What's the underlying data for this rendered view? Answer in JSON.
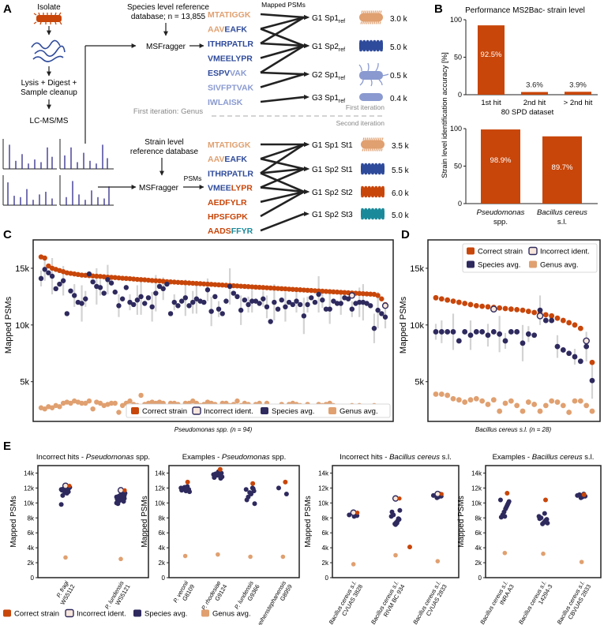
{
  "colors": {
    "correct": "#C8460A",
    "species": "#2E2A5E",
    "genus": "#E0A070",
    "peptide_light": "#E0A070",
    "peptide_mid": "#2E4A9A",
    "peptide_pale": "#8A9AD0",
    "peptide_red": "#C8460A",
    "peptide_teal": "#1A8A9A",
    "whisker": "#D3D3D3",
    "incorrect_fill": "#F7E6DC"
  },
  "panel_a": {
    "letter": "A",
    "isolate": "Isolate",
    "lysis": "Lysis + Digest +",
    "lysis2": "Sample cleanup",
    "lcms": "LC-MS/MS",
    "species_db": "Species level reference",
    "species_db2": "database; n = 13,855",
    "msfragger": "MSFragger",
    "mapped_psms": "Mapped PSMs",
    "first_iter_genus": "First iteration: Genus",
    "first_iter": "First iteration",
    "second_iter": "Second iteration",
    "strain_db": "Strain level",
    "strain_db2": "reference database",
    "psms": "PSMs",
    "top_peptides": [
      {
        "a": "MTATIGGK",
        "b": ""
      },
      {
        "a": "AAV",
        "b": "EAFK"
      },
      {
        "a": "ITHRPATLR",
        "b": ""
      },
      {
        "a": "VMEELYPR",
        "b": ""
      },
      {
        "a": "ESPV",
        "b": "VAK"
      },
      {
        "a": "SIVFPTVAK",
        "b": ""
      },
      {
        "a": "IWLAISK",
        "b": ""
      }
    ],
    "top_targets": [
      {
        "g": "G1 Sp1",
        "sub": "ref",
        "count": "3.0 k"
      },
      {
        "g": "G1 Sp2",
        "sub": "ref",
        "count": "5.0 k"
      },
      {
        "g": "G2 Sp1",
        "sub": "ref",
        "count": "0.5 k"
      },
      {
        "g": "G3 Sp1",
        "sub": "ref",
        "count": "0.4 k"
      }
    ],
    "bottom_peptides": [
      {
        "a": "MTATIGGK",
        "b": ""
      },
      {
        "a": "AAV",
        "b": "EAFK"
      },
      {
        "a": "ITHRPATLR",
        "b": ""
      },
      {
        "a": "VMEE",
        "b": "LYPR"
      },
      {
        "a": "AEDFYLR",
        "b": ""
      },
      {
        "a": "HPSFGPK",
        "b": ""
      },
      {
        "a": "AADS",
        "b": "FFYR"
      }
    ],
    "bottom_targets": [
      {
        "g": "G1 Sp1 St1",
        "count": "3.5 k"
      },
      {
        "g": "G1 Sp2 St1",
        "count": "5.5 k"
      },
      {
        "g": "G1 Sp2 St2",
        "count": "6.0 k"
      },
      {
        "g": "G1 Sp2 St3",
        "count": "5.0 k"
      }
    ]
  },
  "panel_b": {
    "letter": "B",
    "title": "Performance MS2Bac- strain level",
    "ylabel": "Strain level identification accuracy [%]",
    "top": {
      "categories": [
        "1st hit",
        "2nd hit",
        "> 2nd hit"
      ],
      "values": [
        92.5,
        3.6,
        3.9
      ],
      "labels": [
        "92.5%",
        "3.6%",
        "3.9%"
      ],
      "xlabel": "80 SPD dataset",
      "ylim": [
        0,
        100
      ],
      "yticks": [
        "0",
        "50",
        "100"
      ]
    },
    "bottom": {
      "categories": [
        "Pseudomonas",
        "Bacillus cereus"
      ],
      "sub": [
        "spp.",
        "s.l."
      ],
      "values": [
        98.9,
        89.7
      ],
      "labels": [
        "98.9%",
        "89.7%"
      ]
    }
  },
  "panel_c": {
    "letter": "C",
    "ylabel": "Mapped PSMs",
    "xlabel": "Pseudomonas spp. (n = 94)",
    "yticks": [
      "5k",
      "10k",
      "15k"
    ]
  },
  "panel_d": {
    "letter": "D",
    "ylabel": "Mapped PSMs",
    "xlabel": "Bacillus cereus s.l. (n = 28)",
    "yticks": [
      "5k",
      "10k",
      "15k"
    ]
  },
  "panel_e": {
    "letter": "E",
    "ylabel": "Mapped PSMs",
    "yticks": [
      "0",
      "2k",
      "4k",
      "6k",
      "8k",
      "10k",
      "12k",
      "14k"
    ],
    "subplots": [
      {
        "title_a": "Incorrect hits - ",
        "title_b": "Pseudomonas",
        "title_c": " spp.",
        "labels": [
          [
            "P. fragi",
            "WS5112"
          ],
          [
            "P. lundensis",
            "WS5121"
          ]
        ]
      },
      {
        "title_a": "Examples - ",
        "title_b": "Pseudomonas",
        "title_c": " spp.",
        "labels": [
          [
            "P. veronii",
            "G8109"
          ],
          [
            "P. rhodesiae",
            "G9124"
          ],
          [
            "P. lundensis",
            "G9366"
          ],
          [
            "P. weihenstephanensis",
            "G8959"
          ]
        ]
      },
      {
        "title_a": "Incorrect hits - ",
        "title_b": "Bacillus cereus",
        "title_c": " s.l.",
        "labels": [
          [
            "Bacillus cereus s.l.",
            "CVUAS 3828"
          ],
          [
            "Bacillus cereus s.l.",
            "RIVM BC 934"
          ],
          [
            "Bacillus cereus s.l.",
            "CVUAS 2833"
          ]
        ]
      },
      {
        "title_a": "Examples - ",
        "title_b": "Bacillus cereus",
        "title_c": " s.l.",
        "labels": [
          [
            "Bacillus cereus s.l.",
            "INRA A3"
          ],
          [
            "Bacillus cereus s.l.",
            "14294-3"
          ],
          [
            "Bacillus cereus s.l.",
            "CBVUAS 2833"
          ]
        ]
      }
    ]
  },
  "legend": {
    "correct": "Correct strain",
    "incorrect": "Incorrect ident.",
    "species": "Species avg.",
    "genus": "Genus avg."
  },
  "chart_data": [
    {
      "type": "bar",
      "title": "Performance MS2Bac- strain level",
      "categories": [
        "1st hit",
        "2nd hit",
        "> 2nd hit"
      ],
      "values": [
        92.5,
        3.6,
        3.9
      ],
      "xlabel": "80 SPD dataset",
      "ylabel": "Strain level identification accuracy [%]",
      "ylim": [
        0,
        100
      ]
    },
    {
      "type": "bar",
      "categories": [
        "Pseudomonas spp.",
        "Bacillus cereus s.l."
      ],
      "values": [
        98.9,
        89.7
      ],
      "ylim": [
        0,
        100
      ]
    },
    {
      "type": "scatter",
      "title": "Pseudomonas spp. (n = 94)",
      "ylabel": "Mapped PSMs",
      "ylim": [
        1500,
        17500
      ],
      "series": [
        {
          "name": "Correct strain",
          "values": [
            16000,
            15900,
            15200,
            15000,
            14900,
            14800,
            14700,
            14600,
            14550,
            14500,
            14450,
            14400,
            14380,
            14350,
            14320,
            14300,
            14280,
            14250,
            14220,
            14200,
            14180,
            14150,
            14120,
            14100,
            14080,
            14050,
            14020,
            14000,
            13980,
            13950,
            13920,
            13900,
            13880,
            13850,
            13820,
            13800,
            13780,
            13760,
            13740,
            13720,
            13700,
            13680,
            13660,
            13640,
            13620,
            13600,
            13580,
            13560,
            13540,
            13520,
            13500,
            13480,
            13460,
            13440,
            13420,
            13400,
            13380,
            13360,
            13340,
            13320,
            13300,
            13280,
            13260,
            13240,
            13220,
            13200,
            13180,
            13160,
            13140,
            13120,
            13100,
            13080,
            13060,
            13040,
            13020,
            13000,
            12980,
            12960,
            12940,
            12920,
            12900,
            12880,
            12860,
            12840,
            12820,
            12800,
            12780,
            12760,
            12740,
            12720,
            12700,
            12600,
            12300,
            11800
          ]
        },
        {
          "name": "Species avg.",
          "values": [
            14100,
            14900,
            14600,
            14300,
            13200,
            13600,
            13900,
            11000,
            13000,
            12600,
            12000,
            11900,
            12300,
            14500,
            13800,
            13400,
            13300,
            12800,
            14000,
            13700,
            12900,
            11700,
            12300,
            13300,
            12000,
            11800,
            12200,
            12500,
            11900,
            12400,
            11600,
            12800,
            13400,
            13200,
            13600,
            11000,
            12000,
            11700,
            12100,
            12400,
            11700,
            12000,
            12300,
            12100,
            12000,
            13100,
            11200,
            12500,
            11400,
            11000,
            12100,
            13400,
            12800,
            12500,
            11300,
            12200,
            11800,
            12100,
            12100,
            11900,
            12300,
            11600,
            10300,
            12000,
            11400,
            12200,
            11600,
            12000,
            11800,
            12100,
            11800,
            10800,
            11800,
            12400,
            12000,
            12700,
            12200,
            11400,
            11400,
            12100,
            11900,
            11900,
            12400,
            12300,
            11400,
            11900,
            12000,
            12000,
            11900,
            11700,
            9700,
            11300,
            11000,
            10700
          ]
        },
        {
          "name": "Genus avg.",
          "values": [
            2700,
            2600,
            2800,
            2700,
            2900,
            2800,
            3100,
            3200,
            3100,
            3300,
            3200,
            3100,
            3100,
            3300,
            2600,
            3200,
            3100,
            2900,
            3000,
            3100,
            3100,
            2300,
            2900,
            3100,
            3300,
            3000,
            2900,
            3800,
            3000,
            3100,
            3200,
            3100,
            3200,
            3100,
            2700,
            3100,
            3100,
            3000,
            2800,
            3100,
            3100,
            3300,
            3100,
            2900,
            3000,
            3200,
            3100,
            3000,
            2500,
            3100,
            3100,
            2900,
            3000,
            3300,
            2900,
            3100,
            3000,
            2700,
            3000,
            3100,
            2800,
            3100,
            2700,
            2600,
            2800,
            3000,
            2600,
            3000,
            3100,
            3000,
            2900,
            2800,
            3000,
            2700,
            2800,
            3000,
            2900,
            3000,
            3100,
            2900,
            2800,
            2700,
            2800,
            2600,
            2900,
            2800,
            2900,
            2700,
            2800,
            2800,
            2900,
            2700,
            2800,
            2600
          ]
        }
      ]
    },
    {
      "type": "scatter",
      "title": "Bacillus cereus s.l. (n = 28)",
      "ylabel": "Mapped PSMs",
      "ylim": [
        1500,
        17500
      ],
      "series": [
        {
          "name": "Correct strain",
          "values": [
            12400,
            12300,
            12200,
            12100,
            12000,
            11900,
            11800,
            11700,
            11650,
            11600,
            11550,
            11500,
            11450,
            11400,
            11350,
            11300,
            11200,
            11100,
            11000,
            10900,
            10800,
            10600,
            10400,
            10200,
            10000,
            9700,
            8600,
            6700
          ]
        },
        {
          "name": "Species avg.",
          "values": [
            9400,
            9400,
            9400,
            9400,
            8600,
            9400,
            9100,
            9400,
            9400,
            9100,
            9400,
            9200,
            8600,
            9400,
            9400,
            8400,
            9200,
            9100,
            11300,
            10400,
            10400,
            8100,
            7800,
            7500,
            7200,
            6800,
            8100,
            5100
          ]
        },
        {
          "name": "Genus avg.",
          "values": [
            3900,
            3900,
            3800,
            3500,
            3400,
            3200,
            3400,
            3500,
            3300,
            3000,
            3400,
            2400,
            3100,
            3300,
            2900,
            2400,
            3200,
            3000,
            2400,
            2900,
            3300,
            3200,
            2900,
            2300,
            3300,
            3300,
            2900,
            2400
          ]
        }
      ]
    }
  ]
}
